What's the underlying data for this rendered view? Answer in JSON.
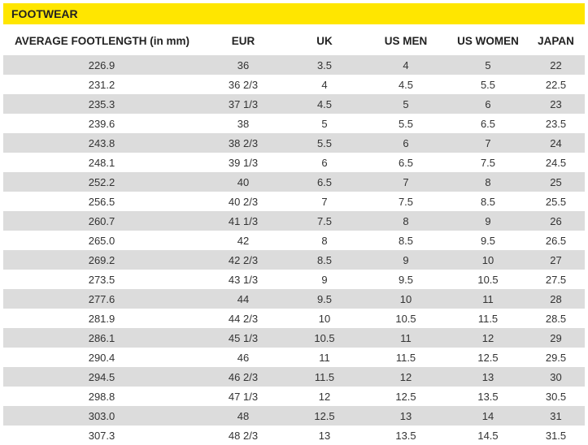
{
  "section_title": "FOOTWEAR",
  "columns": [
    "AVERAGE FOOTLENGTH (in mm)",
    "EUR",
    "UK",
    "US MEN",
    "US WOMEN",
    "JAPAN"
  ],
  "rows": [
    [
      "226.9",
      "36",
      "3.5",
      "4",
      "5",
      "22"
    ],
    [
      "231.2",
      "36 2/3",
      "4",
      "4.5",
      "5.5",
      "22.5"
    ],
    [
      "235.3",
      "37 1/3",
      "4.5",
      "5",
      "6",
      "23"
    ],
    [
      "239.6",
      "38",
      "5",
      "5.5",
      "6.5",
      "23.5"
    ],
    [
      "243.8",
      "38 2/3",
      "5.5",
      "6",
      "7",
      "24"
    ],
    [
      "248.1",
      "39 1/3",
      "6",
      "6.5",
      "7.5",
      "24.5"
    ],
    [
      "252.2",
      "40",
      "6.5",
      "7",
      "8",
      "25"
    ],
    [
      "256.5",
      "40 2/3",
      "7",
      "7.5",
      "8.5",
      "25.5"
    ],
    [
      "260.7",
      "41 1/3",
      "7.5",
      "8",
      "9",
      "26"
    ],
    [
      "265.0",
      "42",
      "8",
      "8.5",
      "9.5",
      "26.5"
    ],
    [
      "269.2",
      "42 2/3",
      "8.5",
      "9",
      "10",
      "27"
    ],
    [
      "273.5",
      "43 1/3",
      "9",
      "9.5",
      "10.5",
      "27.5"
    ],
    [
      "277.6",
      "44",
      "9.5",
      "10",
      "11",
      "28"
    ],
    [
      "281.9",
      "44 2/3",
      "10",
      "10.5",
      "11.5",
      "28.5"
    ],
    [
      "286.1",
      "45 1/3",
      "10.5",
      "11",
      "12",
      "29"
    ],
    [
      "290.4",
      "46",
      "11",
      "11.5",
      "12.5",
      "29.5"
    ],
    [
      "294.5",
      "46 2/3",
      "11.5",
      "12",
      "13",
      "30"
    ],
    [
      "298.8",
      "47 1/3",
      "12",
      "12.5",
      "13.5",
      "30.5"
    ],
    [
      "303.0",
      "48",
      "12.5",
      "13",
      "14",
      "31"
    ],
    [
      "307.3",
      "48 2/3",
      "13",
      "13.5",
      "14.5",
      "31.5"
    ]
  ],
  "colors": {
    "banner": "#ffe600",
    "row_shade": "#dcdcdc"
  }
}
